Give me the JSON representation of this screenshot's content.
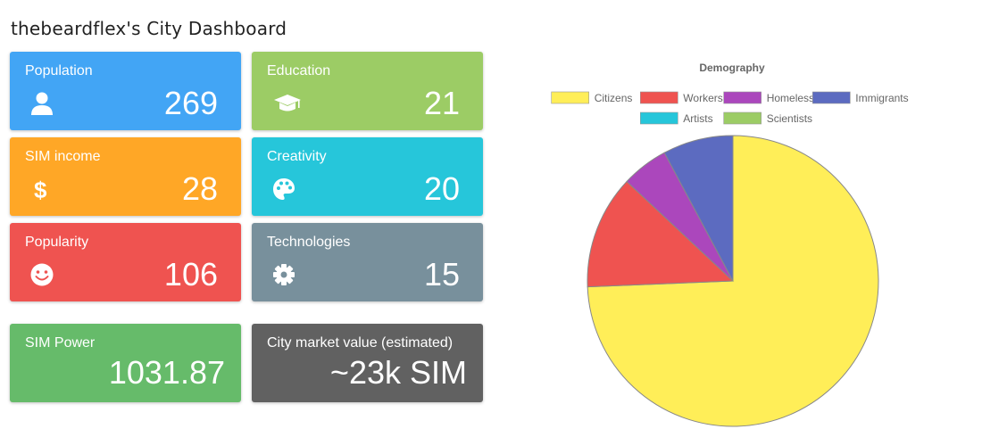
{
  "dashboard": {
    "title": "thebeardflex's City Dashboard"
  },
  "cards": [
    {
      "label": "Population",
      "value": "269",
      "icon": "user-icon",
      "color": "#42a5f5"
    },
    {
      "label": "Education",
      "value": "21",
      "icon": "graduation-cap-icon",
      "color": "#9ccc65"
    },
    {
      "label": "SIM income",
      "value": "28",
      "icon": "dollar-icon",
      "color": "#ffa726"
    },
    {
      "label": "Creativity",
      "value": "20",
      "icon": "palette-icon",
      "color": "#26c6da"
    },
    {
      "label": "Popularity",
      "value": "106",
      "icon": "smile-icon",
      "color": "#ef5350"
    },
    {
      "label": "Technologies",
      "value": "15",
      "icon": "gear-icon",
      "color": "#78909c"
    },
    {
      "label": "SIM Power",
      "value": "1031.87",
      "color": "#66bb6a"
    },
    {
      "label": "City market value (estimated)",
      "value": "~23k SIM",
      "color": "#616161"
    }
  ],
  "chart_data": {
    "type": "pie",
    "title": "Demography",
    "legend_position": "top",
    "categories": [
      "Citizens",
      "Workers",
      "Homeless",
      "Immigrants",
      "Artists",
      "Scientists"
    ],
    "values": [
      200,
      34,
      14,
      21,
      0,
      0
    ],
    "colors": [
      "#ffee58",
      "#ef5350",
      "#ab47bc",
      "#5c6bc0",
      "#26c6da",
      "#9ccc65"
    ]
  }
}
